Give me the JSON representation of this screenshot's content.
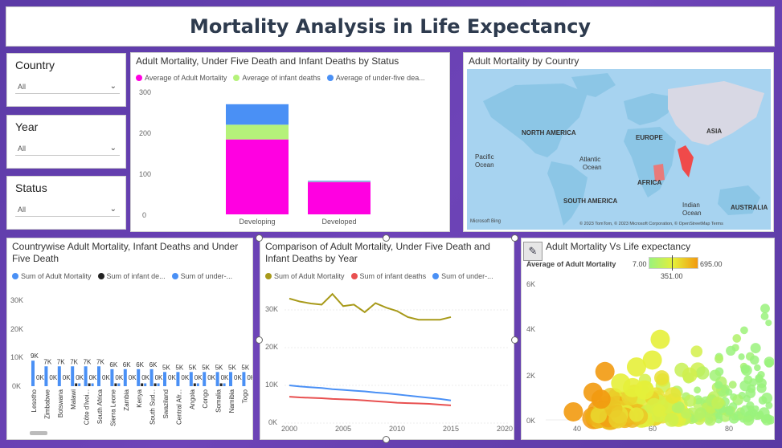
{
  "header": {
    "title": "Mortality Analysis in Life Expectancy"
  },
  "slicers": [
    {
      "label": "Country",
      "value": "All"
    },
    {
      "label": "Year",
      "value": "All"
    },
    {
      "label": "Status",
      "value": "All"
    }
  ],
  "charts": {
    "status": {
      "title": "Adult Mortality, Under Five Death and Infant Deaths by Status",
      "legend": [
        {
          "name": "Average of Adult Mortality",
          "color": "#ff00e1"
        },
        {
          "name": "Average of infant deaths",
          "color": "#b5f27a"
        },
        {
          "name": "Average of under-five dea...",
          "color": "#4a90f5"
        }
      ],
      "yticks": [
        "300",
        "200",
        "100",
        "0"
      ]
    },
    "map": {
      "title": "Adult Mortality by Country",
      "labels": {
        "na": "NORTH AMERICA",
        "eu": "EUROPE",
        "as": "ASIA",
        "pacific": "Pacific\nOcean",
        "atlantic": "Atlantic\nOcean",
        "af": "AFRICA",
        "sa": "SOUTH AMERICA",
        "indian": "Indian\nOcean",
        "au": "AUSTRALIA"
      },
      "attribution": "© 2023 TomTom, © 2023 Microsoft Corporation, © OpenStreetMap  Terms",
      "bing": "Microsoft Bing"
    },
    "countrywise": {
      "title": "Countrywise Adult Mortality, Infant Deaths and Under Five Death",
      "legend": [
        {
          "name": "Sum of Adult Mortality",
          "color": "#4a90f5"
        },
        {
          "name": "Sum of infant de...",
          "color": "#222222"
        },
        {
          "name": "Sum of under-...",
          "color": "#4a90f5"
        }
      ],
      "yticks": [
        "30K",
        "20K",
        "10K",
        "0K"
      ]
    },
    "yearly": {
      "title": "Comparison of Adult Mortality, Under Five Death and Infant Deaths by Year",
      "legend": [
        {
          "name": "Sum of Adult Mortality",
          "color": "#a89a1a"
        },
        {
          "name": "Sum of infant deaths",
          "color": "#e85050"
        },
        {
          "name": "Sum of under-...",
          "color": "#4a90f5"
        }
      ],
      "yticks": [
        "30K",
        "20K",
        "10K",
        "0K"
      ],
      "xticks": [
        "2000",
        "2005",
        "2010",
        "2015",
        "2020"
      ]
    },
    "scatter": {
      "title": "Adult Mortality Vs Life expectancy",
      "legend_label": "Average of Adult Mortality",
      "min": "7.00",
      "max": "695.00",
      "mid": "351.00",
      "yticks": [
        "6K",
        "4K",
        "2K",
        "0K"
      ],
      "xticks": [
        "40",
        "60",
        "80"
      ]
    }
  },
  "chart_data": [
    {
      "type": "bar",
      "title": "Adult Mortality, Under Five Death and Infant Deaths by Status",
      "categories": [
        "Developing",
        "Developed"
      ],
      "series": [
        {
          "name": "Average of Adult Mortality",
          "values": [
            183,
            79
          ]
        },
        {
          "name": "Average of infant deaths",
          "values": [
            36,
            1
          ]
        },
        {
          "name": "Average of under-five dea...",
          "values": [
            50,
            2
          ]
        }
      ],
      "ylim": [
        0,
        300
      ]
    },
    {
      "type": "bar",
      "title": "Countrywise Adult Mortality, Infant Deaths and Under Five Death",
      "categories": [
        "Lesotho",
        "Zimbabwe",
        "Botswana",
        "Malawi",
        "Côte d'Ivoi...",
        "South Africa",
        "Sierra Leone",
        "Zambia",
        "Kenya",
        "South Sud...",
        "Swaziland",
        "Central Afr...",
        "Angola",
        "Congo",
        "Somalia",
        "Namibia",
        "Togo"
      ],
      "series": [
        {
          "name": "Sum of Adult Mortality",
          "values": [
            9000,
            7000,
            7000,
            7000,
            7000,
            7000,
            6000,
            6000,
            6000,
            6000,
            5000,
            5000,
            5000,
            5000,
            5000,
            5000,
            5000
          ]
        },
        {
          "name": "Sum of infant de...",
          "values": [
            0,
            0,
            0,
            1000,
            1000,
            0,
            1000,
            0,
            1000,
            1000,
            0,
            0,
            1000,
            0,
            1000,
            0,
            0
          ]
        },
        {
          "name": "Sum of under-...",
          "values": [
            0,
            0,
            0,
            1000,
            1000,
            0,
            1000,
            0,
            1000,
            1000,
            0,
            0,
            1000,
            0,
            1000,
            0,
            0
          ]
        }
      ],
      "data_labels": [
        "9K",
        "7K",
        "7K",
        "7K",
        "7K",
        "7K",
        "6K",
        "6K",
        "6K",
        "6K",
        "5K",
        "5K",
        "5K",
        "5K",
        "5K",
        "5K",
        "5K"
      ],
      "ylim": [
        0,
        30000
      ]
    },
    {
      "type": "line",
      "title": "Comparison of Adult Mortality, Under Five Death and Infant Deaths by Year",
      "x": [
        2000,
        2001,
        2002,
        2003,
        2004,
        2005,
        2006,
        2007,
        2008,
        2009,
        2010,
        2011,
        2012,
        2013,
        2014,
        2015
      ],
      "series": [
        {
          "name": "Sum of Adult Mortality",
          "values": [
            33000,
            32200,
            31700,
            31400,
            34200,
            31000,
            31400,
            29400,
            31800,
            30600,
            29700,
            28100,
            27400,
            27400,
            27400,
            28100
          ]
        },
        {
          "name": "Sum of infant deaths",
          "values": [
            7000,
            6800,
            6700,
            6600,
            6400,
            6300,
            6200,
            6000,
            5800,
            5600,
            5400,
            5300,
            5200,
            5100,
            4900,
            4700
          ]
        },
        {
          "name": "Sum of under-...",
          "values": [
            10000,
            9700,
            9500,
            9300,
            9000,
            8800,
            8600,
            8400,
            8100,
            7900,
            7600,
            7300,
            7000,
            6700,
            6400,
            6000
          ]
        }
      ],
      "xlim": [
        2000,
        2020
      ],
      "ylim": [
        0,
        35000
      ]
    },
    {
      "type": "scatter",
      "title": "Adult Mortality Vs Life expectancy",
      "color_scale": {
        "min": 7,
        "mid": 351,
        "max": 695
      },
      "xlim": [
        33,
        90
      ],
      "ylim": [
        0,
        6000
      ]
    }
  ]
}
